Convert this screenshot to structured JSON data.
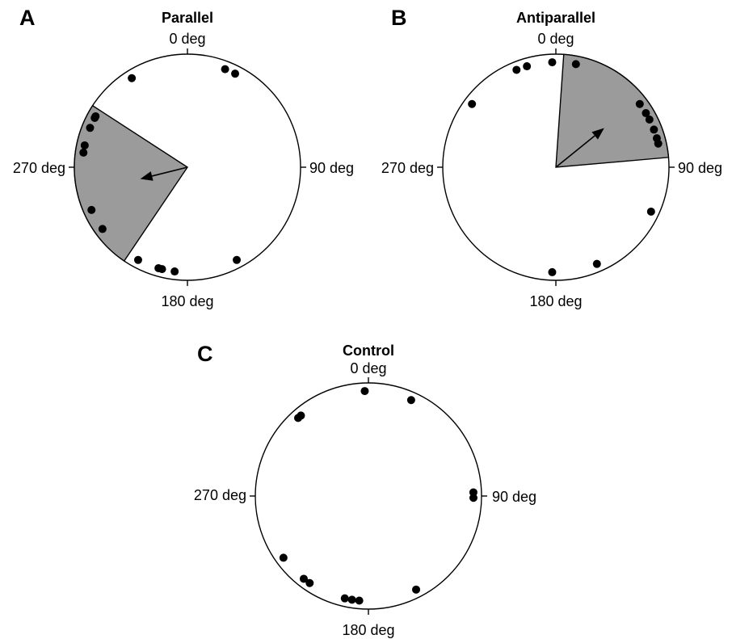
{
  "colors": {
    "background": "#ffffff",
    "sector_fill": "#9b9b9b",
    "marks": "#000000"
  },
  "chart_data": [
    {
      "type": "scatter",
      "subtype": "circular-polar",
      "panel": "A",
      "title": "Parallel",
      "direction_labels": [
        "0 deg",
        "90 deg",
        "180 deg",
        "270 deg"
      ],
      "angle_unit": "degrees",
      "angle_zero": "top",
      "angle_direction": "clockwise",
      "points_deg": [
        328,
        21,
        27,
        299,
        298,
        292,
        282,
        278,
        246,
        234,
        208,
        194,
        187,
        196,
        152
      ],
      "sector_deg": [
        214,
        303
      ],
      "mean_vector": {
        "angle_deg": 256,
        "length": 0.43
      }
    },
    {
      "type": "scatter",
      "subtype": "circular-polar",
      "panel": "B",
      "title": "Antiparallel",
      "direction_labels": [
        "0 deg",
        "90 deg",
        "270 deg",
        "180 deg"
      ],
      "angle_unit": "degrees",
      "angle_zero": "top",
      "angle_direction": "clockwise",
      "points_deg": [
        307,
        338,
        344,
        358,
        11,
        53,
        59,
        63,
        69,
        74,
        77,
        115,
        157,
        182
      ],
      "sector_deg": [
        4,
        85
      ],
      "mean_vector": {
        "angle_deg": 51,
        "length": 0.55
      }
    },
    {
      "type": "scatter",
      "subtype": "circular-polar",
      "panel": "C",
      "title": "Control",
      "direction_labels": [
        "0 deg",
        "270 deg",
        "90 deg",
        "180 deg"
      ],
      "angle_unit": "degrees",
      "angle_zero": "top",
      "angle_direction": "clockwise",
      "points_deg": [
        358,
        24,
        318,
        320,
        88,
        91,
        234,
        218,
        214,
        153,
        189,
        193,
        185
      ],
      "sector_deg": null,
      "mean_vector": null
    }
  ]
}
